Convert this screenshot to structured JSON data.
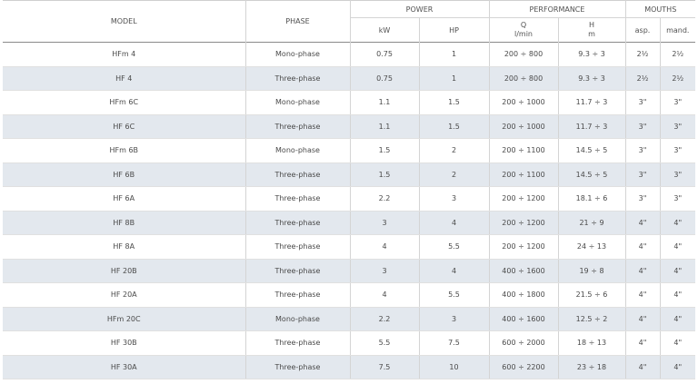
{
  "header": {
    "model": "MODEL",
    "phase": "PHASE",
    "power": "POWER",
    "performance": "PERFORMANCE",
    "mouths": "MOUTHS",
    "kw": "kW",
    "hp": "HP",
    "q": "Q",
    "q_unit": "l/min",
    "h": "H",
    "h_unit": "m",
    "asp": "asp.",
    "mand": "mand."
  },
  "rows": [
    {
      "model": "HFm 4",
      "phase": "Mono-phase",
      "kw": "0.75",
      "hp": "1",
      "q": "200 ÷ 800",
      "h": "9.3 ÷ 3",
      "asp": "2½",
      "mand": "2½"
    },
    {
      "model": "HF 4",
      "phase": "Three-phase",
      "kw": "0.75",
      "hp": "1",
      "q": "200 ÷ 800",
      "h": "9.3 ÷ 3",
      "asp": "2½",
      "mand": "2½"
    },
    {
      "model": "HFm 6C",
      "phase": "Mono-phase",
      "kw": "1.1",
      "hp": "1.5",
      "q": "200 ÷ 1000",
      "h": "11.7 ÷ 3",
      "asp": "3\"",
      "mand": "3\""
    },
    {
      "model": "HF 6C",
      "phase": "Three-phase",
      "kw": "1.1",
      "hp": "1.5",
      "q": "200 ÷ 1000",
      "h": "11.7 ÷ 3",
      "asp": "3\"",
      "mand": "3\""
    },
    {
      "model": "HFm 6B",
      "phase": "Mono-phase",
      "kw": "1.5",
      "hp": "2",
      "q": "200 ÷ 1100",
      "h": "14.5 ÷ 5",
      "asp": "3\"",
      "mand": "3\""
    },
    {
      "model": "HF 6B",
      "phase": "Three-phase",
      "kw": "1.5",
      "hp": "2",
      "q": "200 ÷ 1100",
      "h": "14.5 ÷ 5",
      "asp": "3\"",
      "mand": "3\""
    },
    {
      "model": "HF 6A",
      "phase": "Three-phase",
      "kw": "2.2",
      "hp": "3",
      "q": "200 ÷ 1200",
      "h": "18.1 ÷ 6",
      "asp": "3\"",
      "mand": "3\""
    },
    {
      "model": "HF 8B",
      "phase": "Three-phase",
      "kw": "3",
      "hp": "4",
      "q": "200 ÷ 1200",
      "h": "21 ÷ 9",
      "asp": "4\"",
      "mand": "4\""
    },
    {
      "model": "HF 8A",
      "phase": "Three-phase",
      "kw": "4",
      "hp": "5.5",
      "q": "200 ÷ 1200",
      "h": "24 ÷ 13",
      "asp": "4\"",
      "mand": "4\""
    },
    {
      "model": "HF 20B",
      "phase": "Three-phase",
      "kw": "3",
      "hp": "4",
      "q": "400 ÷ 1600",
      "h": "19 ÷ 8",
      "asp": "4\"",
      "mand": "4\""
    },
    {
      "model": "HF 20A",
      "phase": "Three-phase",
      "kw": "4",
      "hp": "5.5",
      "q": "400 ÷ 1800",
      "h": "21.5 ÷ 6",
      "asp": "4\"",
      "mand": "4\""
    },
    {
      "model": "HFm 20C",
      "phase": "Mono-phase",
      "kw": "2.2",
      "hp": "3",
      "q": "400 ÷ 1600",
      "h": "12.5 ÷ 2",
      "asp": "4\"",
      "mand": "4\""
    },
    {
      "model": "HF 30B",
      "phase": "Three-phase",
      "kw": "5.5",
      "hp": "7.5",
      "q": "600 ÷ 2000",
      "h": "18 ÷ 13",
      "asp": "4\"",
      "mand": "4\""
    },
    {
      "model": "HF 30A",
      "phase": "Three-phase",
      "kw": "7.5",
      "hp": "10",
      "q": "600 ÷ 2200",
      "h": "23 ÷ 18",
      "asp": "4\"",
      "mand": "4\""
    }
  ]
}
